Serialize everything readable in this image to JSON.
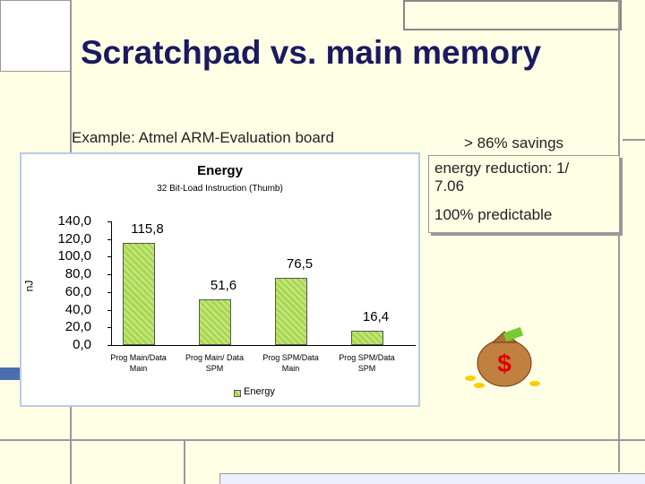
{
  "slide": {
    "title": "Scratchpad vs. main memory",
    "example": "Example: Atmel ARM-Evaluation board",
    "savings": "> 86% savings",
    "reduction": "energy reduction: 1/ 7.06",
    "predictable": "100% predictable"
  },
  "chart_data": {
    "type": "bar",
    "title": "Energy",
    "subtitle": "32 Bit-Load Instruction (Thumb)",
    "y_label": "nJ",
    "categories": [
      "Prog Main/Data Main",
      "Prog Main/ Data SPM",
      "Prog SPM/Data Main",
      "Prog SPM/Data SPM"
    ],
    "series": [
      {
        "name": "Energy",
        "color": "#a8d84a",
        "values": [
          115.8,
          51.6,
          76.5,
          16.4
        ],
        "value_labels": [
          "115,8",
          "51,6",
          "76,5",
          "16,4"
        ]
      }
    ],
    "ylim": [
      0,
      140
    ],
    "yticks": [
      {
        "value": 0,
        "label": "0,0"
      },
      {
        "value": 20,
        "label": "20,0"
      },
      {
        "value": 40,
        "label": "40,0"
      },
      {
        "value": 60,
        "label": "60,0"
      },
      {
        "value": 80,
        "label": "80,0"
      },
      {
        "value": 100,
        "label": "100,0"
      },
      {
        "value": 120,
        "label": "120,0"
      },
      {
        "value": 140,
        "label": "140,0"
      }
    ],
    "legend": "bottom"
  }
}
